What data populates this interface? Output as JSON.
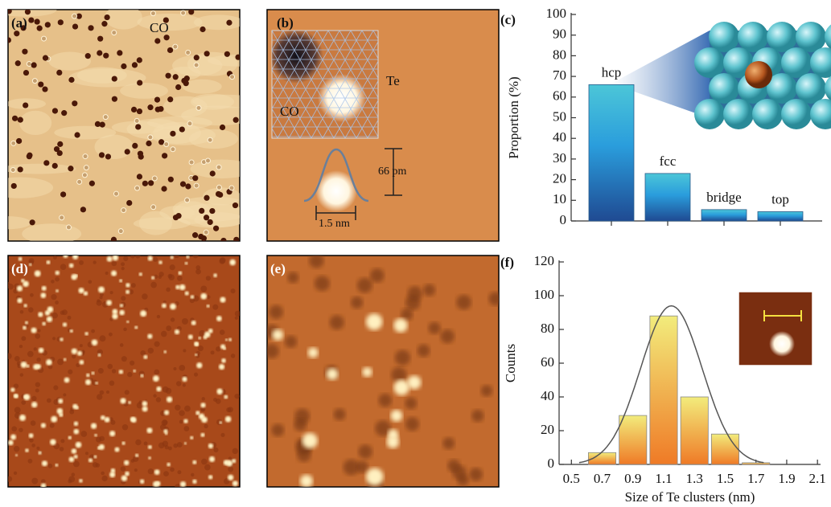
{
  "images": [
    {
      "panel": "(a)",
      "annotations": [
        "CO"
      ]
    },
    {
      "panel": "(b)",
      "annotations": [
        "Te",
        "CO",
        "66 pm",
        "1.5 nm"
      ]
    },
    {
      "panel": "(d)"
    },
    {
      "panel": "(e)"
    }
  ],
  "chart_data": [
    {
      "type": "bar",
      "panel": "(c)",
      "ylabel": "Proportion (%)",
      "categories": [
        "hcp",
        "fcc",
        "bridge",
        "top"
      ],
      "values": [
        66,
        23,
        5.5,
        4.5
      ],
      "color": "#4cc6d8",
      "color_mid": "#2a9ddc",
      "color_bottom": "#1f4a92",
      "ylim": [
        0,
        100
      ],
      "yticks": [
        0,
        10,
        20,
        30,
        40,
        50,
        60,
        70,
        80,
        90,
        100
      ]
    },
    {
      "type": "histogram",
      "panel": "(f)",
      "xlabel": "Size of Te clusters (nm)",
      "ylabel": "Counts",
      "bins": [
        0.6,
        0.8,
        1.0,
        1.2,
        1.4,
        1.6,
        1.8
      ],
      "values": [
        7,
        29,
        88,
        40,
        18,
        1
      ],
      "color": "#f2ec7c",
      "color_bottom": "#ef7a26",
      "fit": {
        "type": "gaussian",
        "mean": 1.15,
        "sigma": 0.2,
        "peak": 94,
        "color": "#555555"
      },
      "xlim": [
        0.42,
        2.12
      ],
      "xticks": [
        0.5,
        0.7,
        0.9,
        1.1,
        1.3,
        1.5,
        1.7,
        1.9,
        2.1
      ],
      "ylim": [
        0,
        120
      ],
      "yticks": [
        0,
        20,
        40,
        60,
        80,
        100,
        120
      ]
    }
  ]
}
